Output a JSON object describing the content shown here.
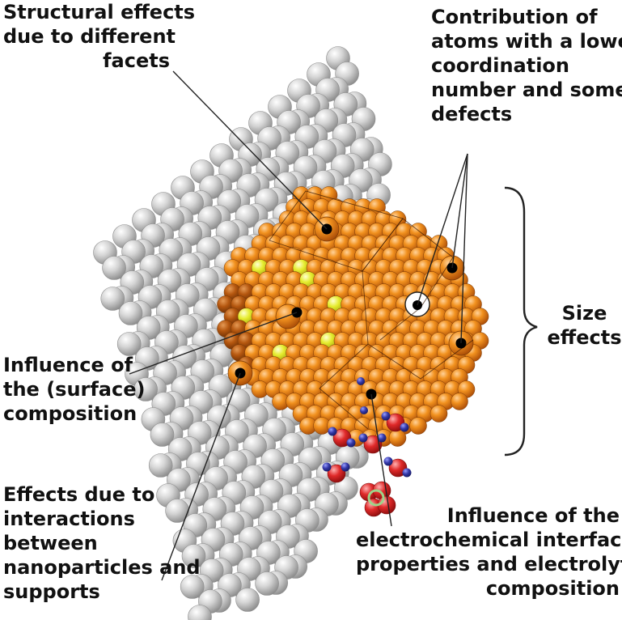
{
  "labels": {
    "structural": [
      "Structural effects",
      "due to different",
      "facets"
    ],
    "coordination": [
      "Contribution of",
      "atoms with a lower",
      "coordination",
      "number and some",
      "defects"
    ],
    "size": [
      "Size",
      "effects"
    ],
    "surface": [
      "Influence of",
      "the (surface)",
      "composition"
    ],
    "supports": [
      "Effects due to",
      "interactions",
      "between",
      "nanoparticles and",
      "supports"
    ],
    "electrolyte": [
      "Influence of the",
      "electrochemical interface",
      "properties and electrolyte",
      "composition"
    ]
  },
  "colors": {
    "support": "#c9c9c9",
    "nanoparticle": "#ef8a1e",
    "nanoparticle_dark": "#b8560c",
    "surface_dopant": "#e4ea2c",
    "oxygen": "#e02a2a",
    "hydrogen": "#3438a8",
    "site_marker": "#000000",
    "defect_marker": "#ffffff"
  }
}
